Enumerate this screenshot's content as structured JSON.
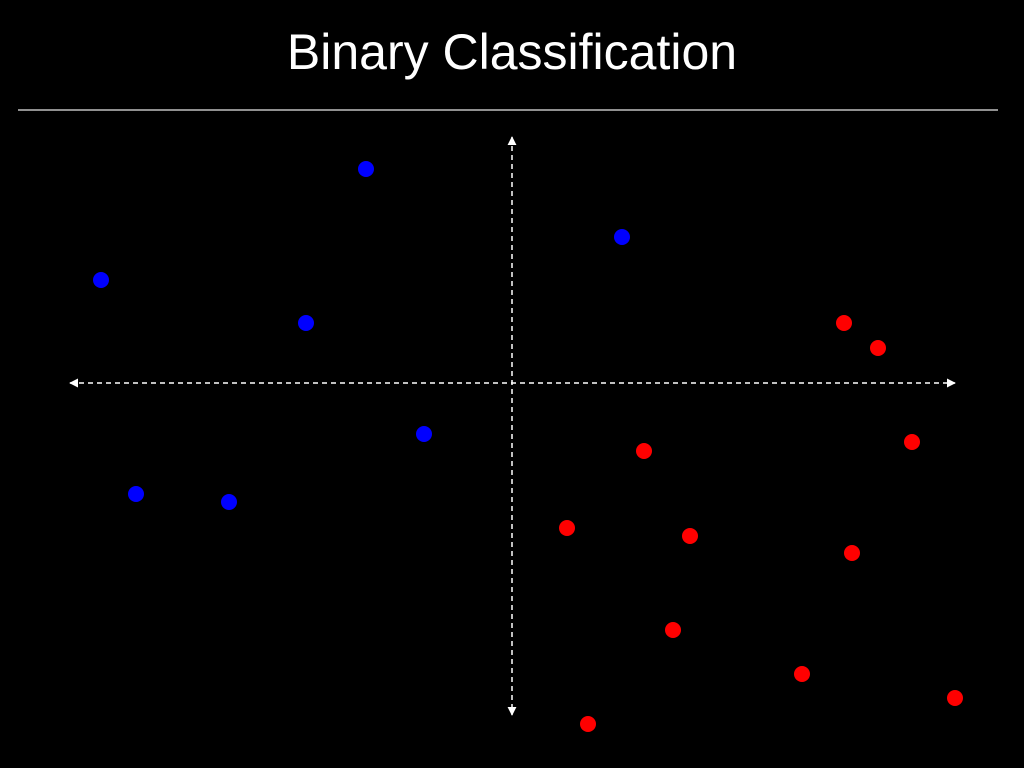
{
  "chart_data": {
    "type": "scatter",
    "title": "Binary Classification",
    "xlim": [
      -45,
      45
    ],
    "ylim": [
      -35,
      25
    ],
    "series": [
      {
        "color": "#0000ff",
        "x": [
          -14.6,
          -41.1,
          -20.6,
          11.0,
          -8.8,
          -37.6,
          -28.3
        ],
        "values": [
          21.4,
          10.3,
          6.0,
          14.6,
          -5.1,
          -11.1,
          -11.9
        ]
      },
      {
        "color": "#ff0000",
        "x": [
          33.2,
          36.6,
          40.0,
          13.2,
          5.5,
          17.8,
          34.0,
          16.1,
          29.0,
          44.3,
          7.6
        ],
        "values": [
          6.0,
          3.5,
          -5.9,
          -6.8,
          -14.5,
          -15.3,
          -17.0,
          -24.7,
          -29.1,
          -31.5,
          -34.1
        ]
      }
    ]
  }
}
